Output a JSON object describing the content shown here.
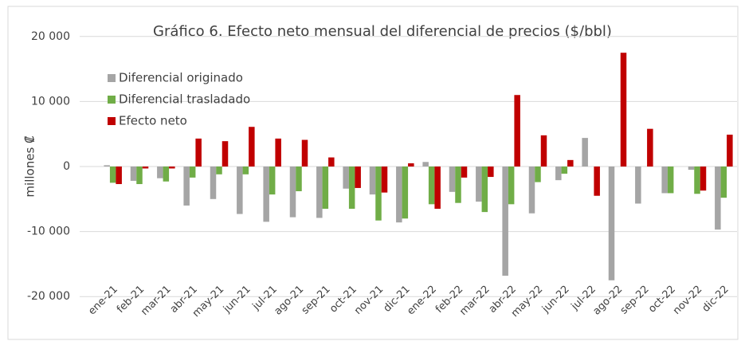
{
  "chart_data": {
    "type": "bar",
    "title": "Gráfico 6. Efecto neto mensual del diferencial de precios ($/bbl)",
    "y_label": "millones ₡",
    "categories": [
      "ene-21",
      "feb-21",
      "mar-21",
      "abr-21",
      "may-21",
      "jun-21",
      "jul-21",
      "ago-21",
      "sep-21",
      "oct-21",
      "nov-21",
      "dic-21",
      "ene-22",
      "feb-22",
      "mar-22",
      "abr-22",
      "may-22",
      "jun-22",
      "jul-22",
      "ago-22",
      "sep-22",
      "oct-22",
      "nov-22",
      "dic-22"
    ],
    "series": [
      {
        "name": "Diferencial originado",
        "color": "#a5a5a5",
        "values": [
          200,
          -2200,
          -1800,
          -6000,
          -5000,
          -7300,
          -8500,
          -7800,
          -7900,
          -3400,
          -4300,
          -8600,
          700,
          -3900,
          -5400,
          -16800,
          -7200,
          -2100,
          4400,
          -17500,
          -5700,
          -4100,
          -500,
          -9700
        ]
      },
      {
        "name": "Diferencial trasladado",
        "color": "#70ad47",
        "values": [
          -2500,
          -2700,
          -2300,
          -1700,
          -1200,
          -1200,
          -4300,
          -3800,
          -6500,
          -6500,
          -8300,
          -8000,
          -5800,
          -5600,
          -7000,
          -5800,
          -2400,
          -1100,
          0,
          0,
          0,
          -4100,
          -4200,
          -4800
        ]
      },
      {
        "name": "Efecto neto",
        "color": "#c00000",
        "values": [
          -2700,
          -300,
          -300,
          4300,
          3900,
          6100,
          4300,
          4100,
          1400,
          -3300,
          -4000,
          500,
          -6500,
          -1700,
          -1600,
          11000,
          4800,
          1000,
          -4500,
          17500,
          5800,
          0,
          -3700,
          4900
        ]
      }
    ],
    "ylim": [
      -25000,
      25000
    ],
    "yticks": [
      {
        "value": -20000,
        "label": "-20 000"
      },
      {
        "value": -10000,
        "label": "-10 000"
      },
      0,
      {
        "value": 10000,
        "label": "10 000"
      },
      {
        "value": 20000,
        "label": "20 000"
      }
    ],
    "grid": true,
    "legend": "top-left"
  }
}
